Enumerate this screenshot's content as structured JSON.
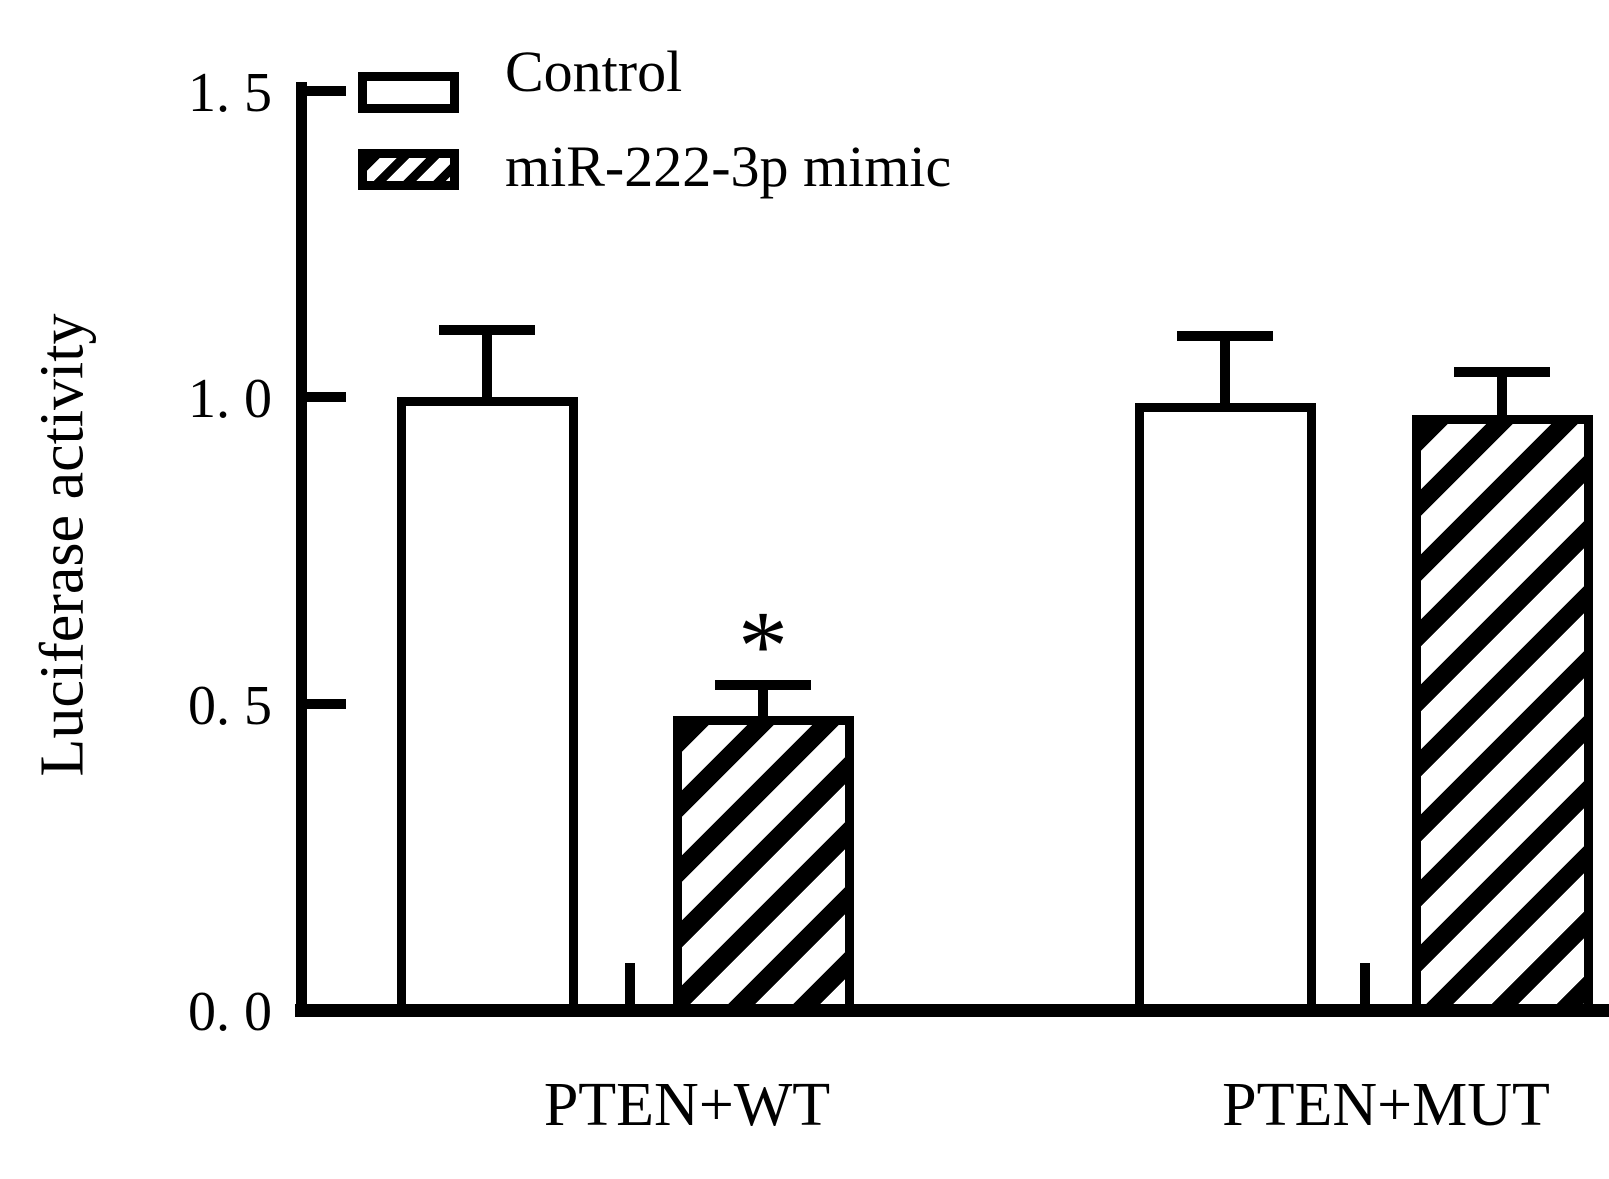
{
  "figure": {
    "background": "#ffffff",
    "ink_color": "#000000"
  },
  "chart_data": {
    "type": "bar",
    "title": "",
    "xlabel": "",
    "ylabel": "Luciferase activity",
    "ylim": [
      0,
      1.5
    ],
    "yticks": {
      "values": [
        0,
        0.5,
        1.0,
        1.5
      ],
      "labels": [
        "0. 0",
        "0. 5",
        "1. 0",
        "1. 5"
      ]
    },
    "categories": [
      "PTEN+WT",
      "PTEN+MUT"
    ],
    "series": [
      {
        "name": "Control",
        "fill": "white",
        "values": [
          1.0,
          0.99
        ],
        "errors": [
          0.11,
          0.11
        ]
      },
      {
        "name": "miR-222-3p mimic",
        "fill": "hatched",
        "values": [
          0.48,
          0.97
        ],
        "errors": [
          0.05,
          0.07
        ]
      }
    ],
    "error_bars": "upper-only",
    "grid": false,
    "legend_position": "top-left",
    "annotations": [
      {
        "text": "*",
        "category_index": 0,
        "series_index": 1
      }
    ]
  }
}
